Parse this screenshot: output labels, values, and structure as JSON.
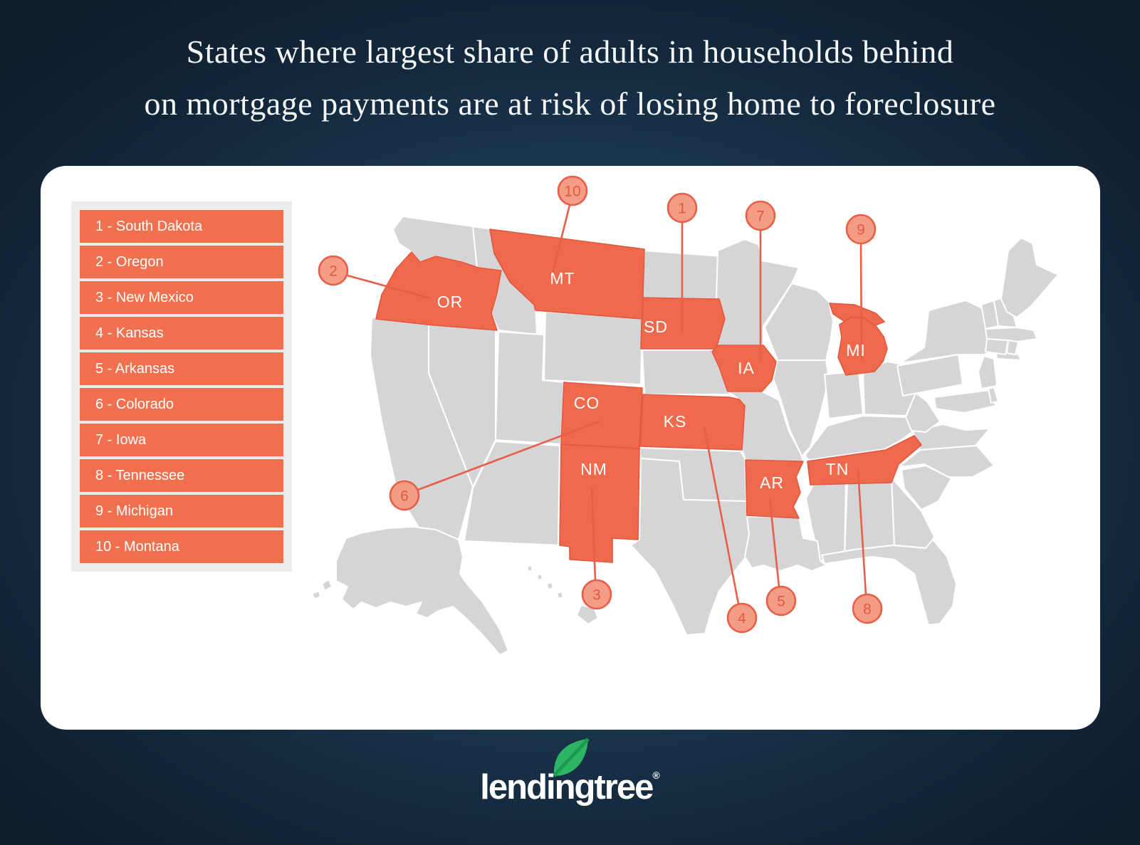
{
  "title": {
    "line1": "States where largest share of adults in households behind",
    "line2": "on mortgage payments are at risk of losing home to foreclosure"
  },
  "legend": {
    "items": [
      {
        "rank": "1",
        "state": "South Dakota",
        "label": "1 - South Dakota"
      },
      {
        "rank": "2",
        "state": "Oregon",
        "label": "2 - Oregon"
      },
      {
        "rank": "3",
        "state": "New Mexico",
        "label": "3 - New Mexico"
      },
      {
        "rank": "4",
        "state": "Kansas",
        "label": "4 - Kansas"
      },
      {
        "rank": "5",
        "state": "Arkansas",
        "label": "5 - Arkansas"
      },
      {
        "rank": "6",
        "state": "Colorado",
        "label": "6 - Colorado"
      },
      {
        "rank": "7",
        "state": "Iowa",
        "label": "7 - Iowa"
      },
      {
        "rank": "8",
        "state": "Tennessee",
        "label": "8 - Tennessee"
      },
      {
        "rank": "9",
        "state": "Michigan",
        "label": "9 - Michigan"
      },
      {
        "rank": "10",
        "state": "Montana",
        "label": "10 - Montana"
      }
    ]
  },
  "map": {
    "states": [
      {
        "rank": "1",
        "abbr": "SD",
        "name": "South Dakota"
      },
      {
        "rank": "2",
        "abbr": "OR",
        "name": "Oregon"
      },
      {
        "rank": "3",
        "abbr": "NM",
        "name": "New Mexico"
      },
      {
        "rank": "4",
        "abbr": "KS",
        "name": "Kansas"
      },
      {
        "rank": "5",
        "abbr": "AR",
        "name": "Arkansas"
      },
      {
        "rank": "6",
        "abbr": "CO",
        "name": "Colorado"
      },
      {
        "rank": "7",
        "abbr": "IA",
        "name": "Iowa"
      },
      {
        "rank": "8",
        "abbr": "TN",
        "name": "Tennessee"
      },
      {
        "rank": "9",
        "abbr": "MI",
        "name": "Michigan"
      },
      {
        "rank": "10",
        "abbr": "MT",
        "name": "Montana"
      }
    ]
  },
  "logo": {
    "brand": "lendingtree",
    "registered": "®"
  },
  "colors": {
    "highlight_state": "#ef6a4d",
    "highlight_stroke": "#e2573e",
    "base_state": "#d5d5d7",
    "base_stroke": "#ffffff",
    "legend_row": "#f3704e",
    "callout_fill": "#f59c86",
    "callout_stroke": "#e85e46",
    "callout_text": "#e0593f",
    "card": "#ffffff",
    "leaf_green": "#2db563",
    "leaf_vein": "#1a9b50"
  }
}
